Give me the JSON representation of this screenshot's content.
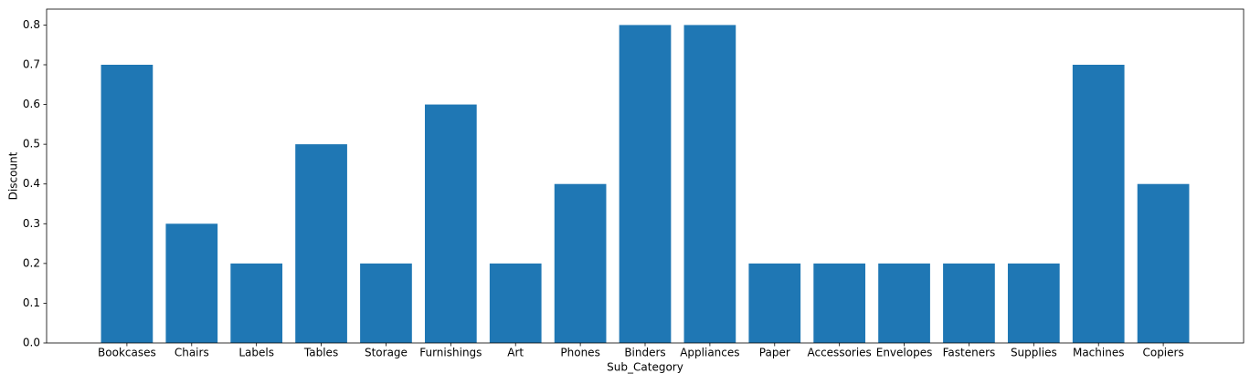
{
  "chart_data": {
    "type": "bar",
    "categories": [
      "Bookcases",
      "Chairs",
      "Labels",
      "Tables",
      "Storage",
      "Furnishings",
      "Art",
      "Phones",
      "Binders",
      "Appliances",
      "Paper",
      "Accessories",
      "Envelopes",
      "Fasteners",
      "Supplies",
      "Machines",
      "Copiers"
    ],
    "values": [
      0.7,
      0.3,
      0.2,
      0.5,
      0.2,
      0.6,
      0.2,
      0.4,
      0.8,
      0.8,
      0.2,
      0.2,
      0.2,
      0.2,
      0.2,
      0.7,
      0.4
    ],
    "color": "#1f77b4",
    "x_label": "Sub_Category",
    "y_label": "Discount",
    "ylim": [
      0,
      0.84
    ],
    "yticks": [
      {
        "value": 0,
        "label": "0.0"
      },
      0.1,
      0.2,
      0.3,
      0.4,
      0.5,
      0.6,
      0.7,
      0.8
    ],
    "grid": false
  }
}
